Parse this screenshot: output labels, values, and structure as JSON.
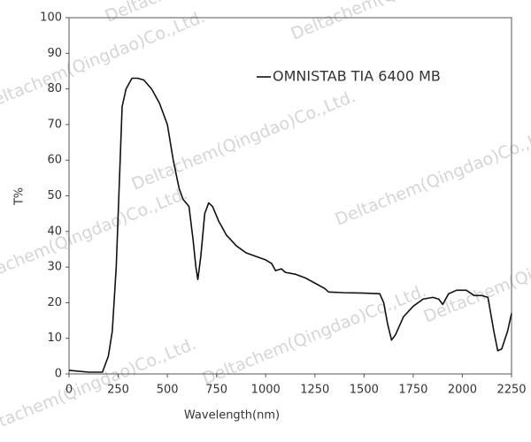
{
  "chart_data": {
    "type": "line",
    "xlabel": "Wavelength(nm)",
    "ylabel": "T%",
    "watermark": "Deltachem(Qingdao)Co.,Ltd.",
    "xlim": [
      0,
      2250
    ],
    "xticks": [
      0,
      250,
      500,
      750,
      1000,
      1250,
      1500,
      1750,
      2000,
      2250
    ],
    "ylim": [
      0,
      100
    ],
    "yticks": [
      0,
      10,
      20,
      30,
      40,
      50,
      60,
      70,
      80,
      90,
      100
    ],
    "legend": "upper right",
    "series": [
      {
        "name": "OMNISTAB TIA 6400 MB",
        "color": "#111111",
        "x": [
          0,
          100,
          170,
          200,
          220,
          240,
          260,
          270,
          290,
          320,
          350,
          380,
          420,
          460,
          500,
          530,
          560,
          580,
          610,
          630,
          645,
          655,
          670,
          690,
          710,
          730,
          760,
          800,
          850,
          900,
          950,
          1000,
          1030,
          1050,
          1080,
          1100,
          1150,
          1200,
          1250,
          1300,
          1320,
          1400,
          1500,
          1580,
          1600,
          1620,
          1640,
          1660,
          1700,
          1750,
          1800,
          1850,
          1880,
          1900,
          1930,
          1970,
          2020,
          2060,
          2100,
          2130,
          2160,
          2180,
          2200,
          2230,
          2250
        ],
        "values": [
          1,
          0.5,
          0.5,
          5,
          12,
          30,
          60,
          75,
          80,
          83,
          83,
          82.5,
          80,
          76,
          70,
          60,
          52,
          49,
          47,
          38,
          30,
          26.5,
          33,
          45,
          48,
          47,
          43,
          39,
          36,
          34,
          33,
          32,
          31,
          29,
          29.5,
          28.5,
          28,
          27,
          25.5,
          24,
          23,
          22.8,
          22.7,
          22.5,
          20,
          14,
          9.5,
          11,
          16,
          19,
          21,
          21.5,
          21,
          19.5,
          22.5,
          23.5,
          23.5,
          22,
          22,
          21.5,
          12,
          6.5,
          7,
          12,
          17
        ]
      }
    ]
  }
}
